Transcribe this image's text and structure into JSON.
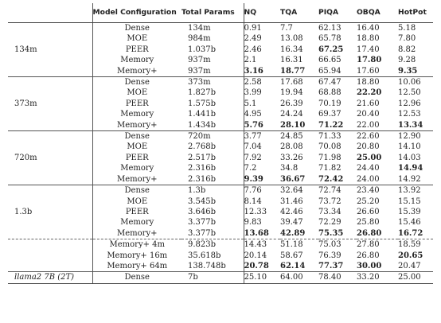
{
  "header": [
    "",
    "Model Configuration",
    "Total Params",
    "NQ",
    "TQA",
    "PIQA",
    "OBQA",
    "HotPot"
  ],
  "groups": [
    {
      "size": "134m",
      "rows": [
        {
          "config": "Dense",
          "params": "134m",
          "vals": [
            "0.91",
            "7.7",
            "62.13",
            "16.40",
            "5.18"
          ],
          "bold": []
        },
        {
          "config": "MOE",
          "params": "984m",
          "vals": [
            "2.49",
            "13.08",
            "65.78",
            "18.80",
            "7.80"
          ],
          "bold": []
        },
        {
          "config": "PEER",
          "params": "1.037b",
          "vals": [
            "2.46",
            "16.34",
            "67.25",
            "17.40",
            "8.82"
          ],
          "bold": [
            2
          ]
        },
        {
          "config": "Memory",
          "params": "937m",
          "vals": [
            "2.1",
            "16.31",
            "66.65",
            "17.80",
            "9.28"
          ],
          "bold": [
            3
          ]
        },
        {
          "config": "Memory+",
          "params": "937m",
          "vals": [
            "3.16",
            "18.77",
            "65.94",
            "17.60",
            "9.35"
          ],
          "bold": [
            0,
            1,
            4
          ]
        }
      ]
    },
    {
      "size": "373m",
      "rows": [
        {
          "config": "Dense",
          "params": "373m",
          "vals": [
            "2.58",
            "17.68",
            "67.47",
            "18.80",
            "10.06"
          ],
          "bold": []
        },
        {
          "config": "MOE",
          "params": "1.827b",
          "vals": [
            "3.99",
            "19.94",
            "68.88",
            "22.20",
            "12.50"
          ],
          "bold": [
            3
          ]
        },
        {
          "config": "PEER",
          "params": "1.575b",
          "vals": [
            "5.1",
            "26.39",
            "70.19",
            "21.60",
            "12.96"
          ],
          "bold": []
        },
        {
          "config": "Memory",
          "params": "1.441b",
          "vals": [
            "4.95",
            "24.24",
            "69.37",
            "20.40",
            "12.53"
          ],
          "bold": []
        },
        {
          "config": "Memory+",
          "params": "1.434b",
          "vals": [
            "5.76",
            "28.10",
            "71.22",
            "22.00",
            "13.34"
          ],
          "bold": [
            0,
            1,
            2,
            4
          ]
        }
      ]
    },
    {
      "size": "720m",
      "rows": [
        {
          "config": "Dense",
          "params": "720m",
          "vals": [
            "3.77",
            "24.85",
            "71.33",
            "22.60",
            "12.90"
          ],
          "bold": []
        },
        {
          "config": "MOE",
          "params": "2.768b",
          "vals": [
            "7.04",
            "28.08",
            "70.08",
            "20.80",
            "14.10"
          ],
          "bold": []
        },
        {
          "config": "PEER",
          "params": "2.517b",
          "vals": [
            "7.92",
            "33.26",
            "71.98",
            "25.00",
            "14.03"
          ],
          "bold": [
            3
          ]
        },
        {
          "config": "Memory",
          "params": "2.316b",
          "vals": [
            "7.2",
            "34.8",
            "71.82",
            "24.40",
            "14.94"
          ],
          "bold": [
            4
          ]
        },
        {
          "config": "Memory+",
          "params": "2.316b",
          "vals": [
            "9.39",
            "36.67",
            "72.42",
            "24.00",
            "14.92"
          ],
          "bold": [
            0,
            1,
            2
          ]
        }
      ]
    },
    {
      "size": "1.3b",
      "rows": [
        {
          "config": "Dense",
          "params": "1.3b",
          "vals": [
            "7.76",
            "32.64",
            "72.74",
            "23.40",
            "13.92"
          ],
          "bold": []
        },
        {
          "config": "MOE",
          "params": "3.545b",
          "vals": [
            "8.14",
            "31.46",
            "73.72",
            "25.20",
            "15.15"
          ],
          "bold": []
        },
        {
          "config": "PEER",
          "params": "3.646b",
          "vals": [
            "12.33",
            "42.46",
            "73.34",
            "26.60",
            "15.39"
          ],
          "bold": []
        },
        {
          "config": "Memory",
          "params": "3.377b",
          "vals": [
            "9.83",
            "39.47",
            "72.29",
            "25.80",
            "15.46"
          ],
          "bold": []
        },
        {
          "config": "Memory+",
          "params": "3.377b",
          "vals": [
            "13.68",
            "42.89",
            "75.35",
            "26.80",
            "16.72"
          ],
          "bold": [
            0,
            1,
            2,
            3,
            4
          ]
        }
      ],
      "extra": [
        {
          "config": "Memory+ 4m",
          "params": "9.823b",
          "vals": [
            "14.43",
            "51.18",
            "75.03",
            "27.80",
            "18.59"
          ],
          "bold": []
        },
        {
          "config": "Memory+ 16m",
          "params": "35.618b",
          "vals": [
            "20.14",
            "58.67",
            "76.39",
            "26.80",
            "20.65"
          ],
          "bold": [
            4
          ]
        },
        {
          "config": "Memory+ 64m",
          "params": "138.748b",
          "vals": [
            "20.78",
            "62.14",
            "77.37",
            "30.00",
            "20.47"
          ],
          "bold": [
            0,
            1,
            2,
            3
          ]
        }
      ]
    }
  ],
  "baseline": {
    "size": "llama2 7B (2T)",
    "config": "Dense",
    "params": "7b",
    "vals": [
      "25.10",
      "64.00",
      "78.40",
      "33.20",
      "25.00"
    ],
    "bold": []
  }
}
